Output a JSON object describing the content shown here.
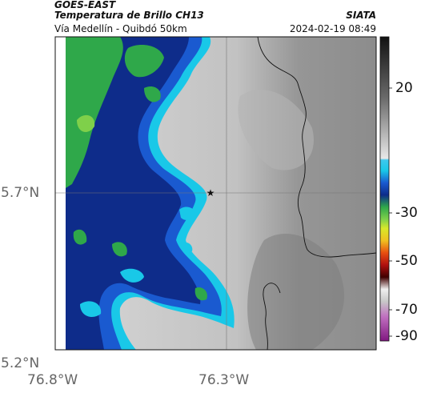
{
  "header": {
    "source": "GOES-EAST",
    "product": "Temperatura de Brillo CH13",
    "org": "SIATA",
    "region": "Vía Medellín - Quibdó 50km",
    "datetime": "2024-02-19 08:49"
  },
  "axes": {
    "lat_ticks": [
      "5.7°N",
      "5.2°N"
    ],
    "lon_ticks": [
      "76.8°W",
      "76.3°W"
    ]
  },
  "colorbar": {
    "ticks": [
      "20",
      "-30",
      "-50",
      "-70",
      "-90"
    ]
  },
  "marker": {
    "symbol": "★",
    "name": "reference-site-marker"
  },
  "colors": {
    "cold_cloud_green": "#2fa84a",
    "cloud_navy": "#0e2c8a",
    "cloud_edge_cyan": "#19c8e8",
    "clear_sky_gray": "#c9c9c9",
    "land_dark_gray": "#8a8a8a"
  }
}
